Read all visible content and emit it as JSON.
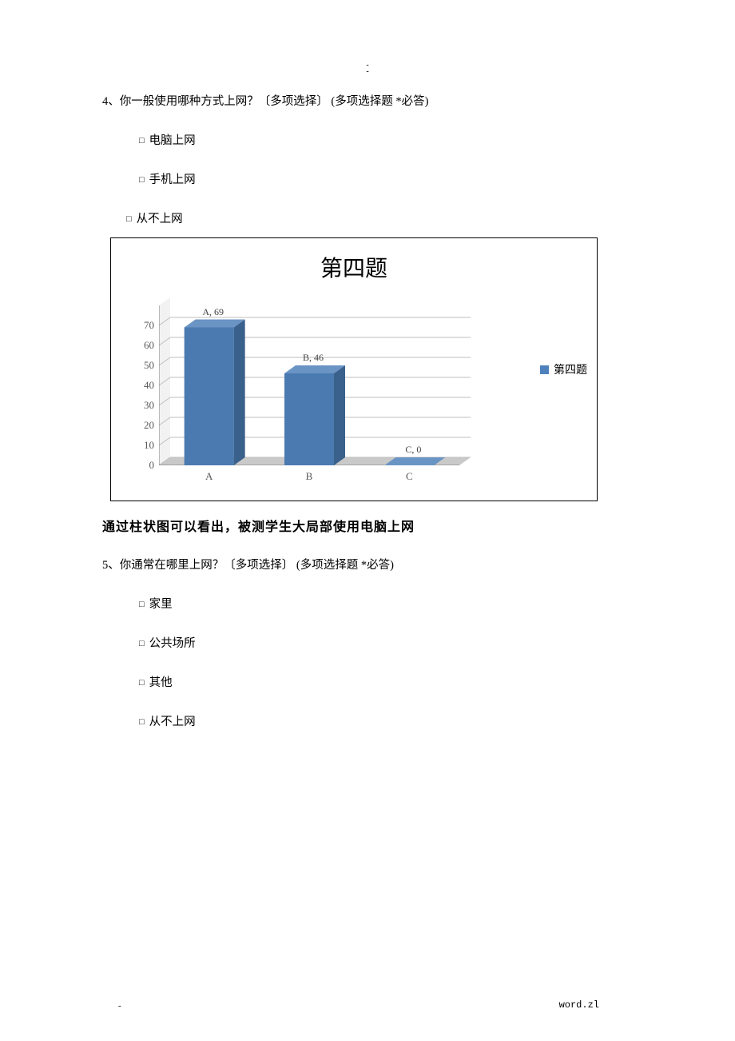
{
  "pageMarkTop1": "-",
  "pageMarkTop2": "-",
  "q4": {
    "text": "4、你一般使用哪种方式上网？〔多项选择〕 (多项选择题  *必答)",
    "options": {
      "a": "电脑上网",
      "b": "手机上网",
      "c": "从不上网"
    }
  },
  "chart": {
    "title": "第四题",
    "title_fontsize": 28,
    "legend_label": "第四题",
    "legend_swatch_color": "#4f81bd",
    "background_color": "#ffffff",
    "border_color": "#000000",
    "plot_border_color": "#808080",
    "grid_color": "#bfbfbf",
    "axis_label_color": "#595959",
    "data_label_color": "#404040",
    "ylim": [
      0,
      80
    ],
    "ytick_step": 10,
    "yticks": [
      0,
      10,
      20,
      30,
      40,
      50,
      60,
      70
    ],
    "categories": [
      "A",
      "B",
      "C"
    ],
    "values": [
      69,
      46,
      0
    ],
    "data_labels": [
      "A, 69",
      "B, 46",
      "C, 0"
    ],
    "bar": {
      "front_fill": "#4a7ab0",
      "side_fill": "#3a608c",
      "top_fill": "#6a94c4",
      "depth_x": 14,
      "depth_y": 10,
      "width": 62
    },
    "floor_fill": "#c9c9c9",
    "back_wall_fill": "#ffffff",
    "tick_fontsize": 13,
    "data_label_fontsize": 12
  },
  "summary": "通过柱状图可以看出，被测学生大局部使用电脑上网",
  "q5": {
    "text": "5、你通常在哪里上网？〔多项选择〕 (多项选择题  *必答)",
    "options": {
      "a": "家里",
      "b": "公共场所",
      "c": "其他",
      "d": "从不上网"
    }
  },
  "footer": {
    "left_dash": "-",
    "right": "word.zl"
  },
  "checkbox_glyph": "□"
}
